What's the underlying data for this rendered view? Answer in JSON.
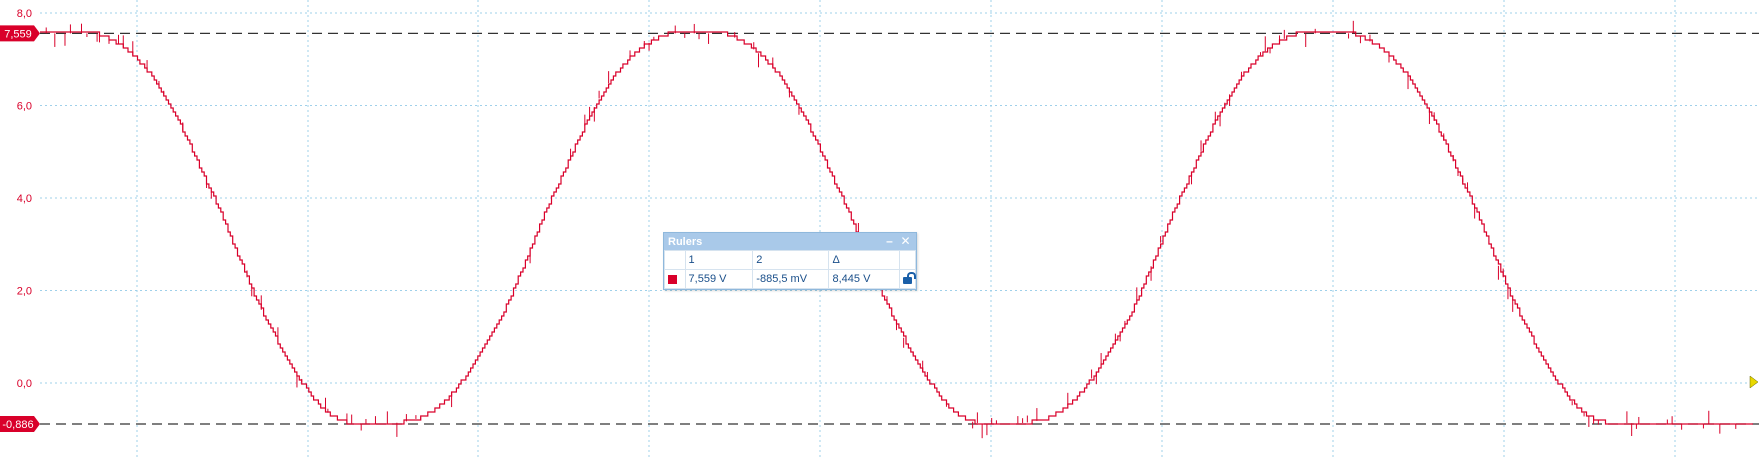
{
  "chart_data": {
    "type": "line",
    "title": "",
    "xlabel": "",
    "ylabel": "",
    "ylim": [
      -1.5,
      8.0
    ],
    "yticks": [
      0.0,
      2.0,
      4.0,
      6.0,
      8.0
    ],
    "ytick_labels": [
      "0,0",
      "2,0",
      "4,0",
      "6,0",
      "8,0"
    ],
    "grid": true,
    "line_color": "#d9002a",
    "series": [
      {
        "x": [
          0,
          8,
          16,
          24,
          32,
          40,
          48,
          56,
          64,
          72,
          80,
          88,
          96,
          104,
          112,
          120,
          128,
          136,
          144,
          152,
          160,
          168,
          176,
          184,
          192,
          200,
          208,
          216,
          224,
          232,
          240
        ],
        "values": [
          7.56,
          7.56,
          6.56,
          4.12,
          1.27,
          -0.6,
          -0.88,
          -0.48,
          1.27,
          4.12,
          6.56,
          7.56,
          7.56,
          6.56,
          4.12,
          1.27,
          -0.6,
          -0.88,
          -0.48,
          1.27,
          4.12,
          6.56,
          7.56,
          7.56,
          6.56,
          4.12,
          1.27,
          -0.6,
          -0.88,
          -0.88,
          -0.88
        ]
      }
    ],
    "rulers": [
      {
        "label": "7,559",
        "value": 7.559,
        "color": "#d9002a"
      },
      {
        "label": "-0,886",
        "value": -0.886,
        "color": "#d9002a"
      }
    ]
  },
  "rulers_panel": {
    "title": "Rulers",
    "minimize_glyph": "–",
    "close_glyph": "✕",
    "headers": [
      "",
      "1",
      "2",
      "Δ",
      ""
    ],
    "row": {
      "color": "#d9002a",
      "v1": "7,559 V",
      "v2": "-885,5 mV",
      "delta": "8,445 V",
      "lock_icon": "unlock-icon"
    }
  }
}
